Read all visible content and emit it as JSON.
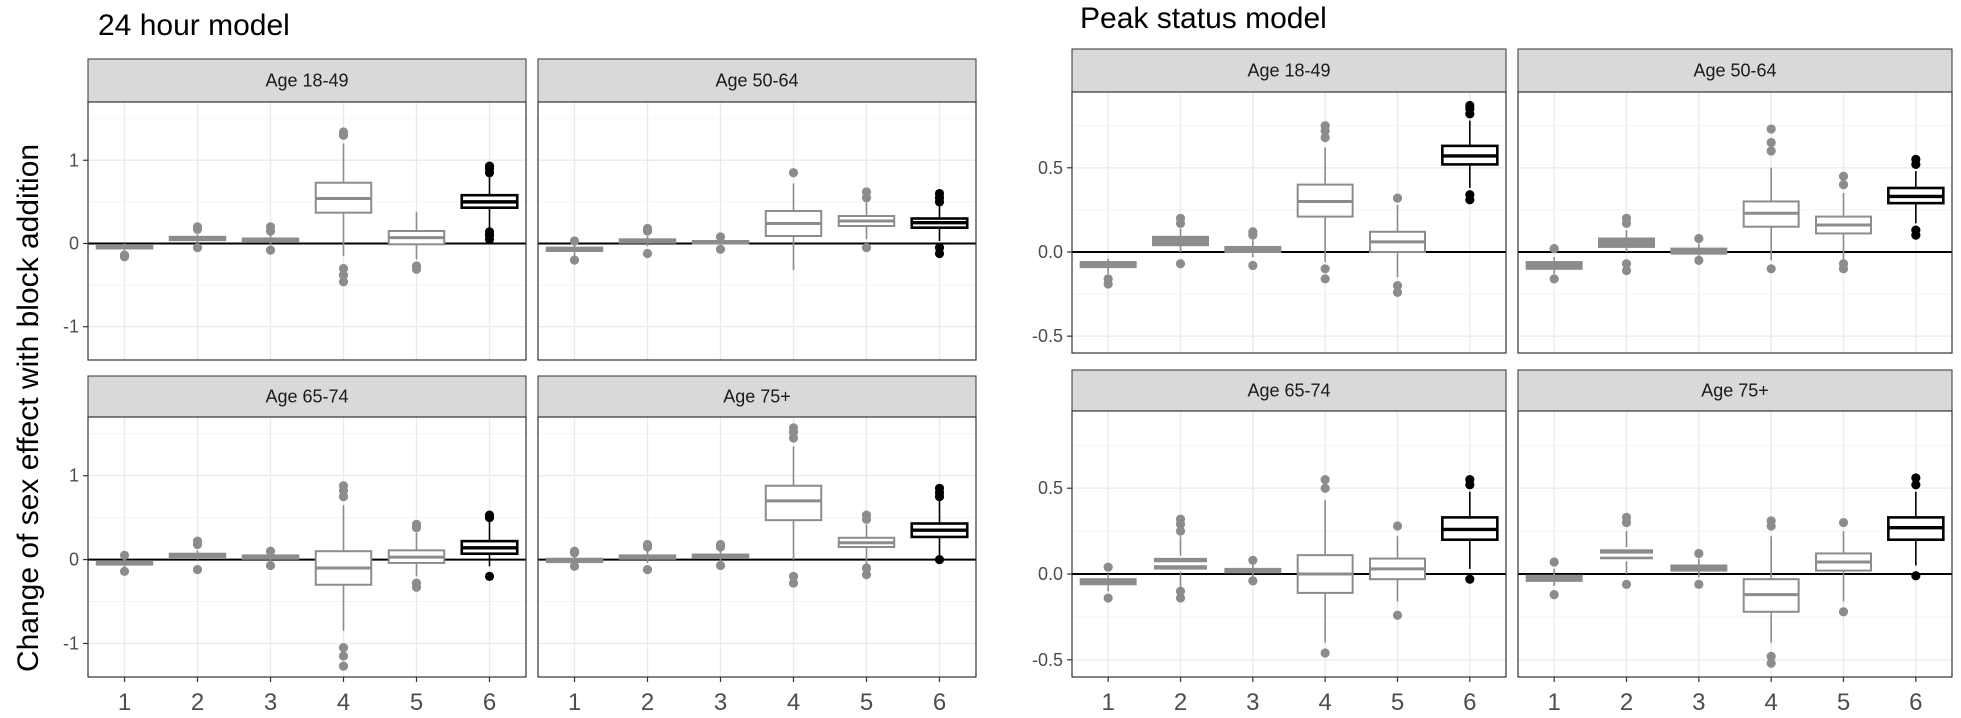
{
  "figure": {
    "ylabel": "Change of sex effect with block addition",
    "colors": {
      "grey": "#8c8c8c",
      "black": "#000000",
      "strip": "#d9d9d9",
      "grid": "#ebebeb",
      "frame": "#333333"
    }
  },
  "chart_data": [
    {
      "type": "box",
      "title": "24 hour model",
      "xlabel": "",
      "ylabel": "Change of sex effect with block addition",
      "categories": [
        "1",
        "2",
        "3",
        "4",
        "5",
        "6"
      ],
      "ylim": [
        -1.4,
        1.7
      ],
      "yticks": [
        -1,
        0,
        1
      ],
      "ytick_labels": [
        "-1",
        "0",
        "1"
      ],
      "grid": true,
      "hline": 0,
      "panels": [
        {
          "label": "Age 18-49",
          "boxes": [
            {
              "min": -0.12,
              "q1": -0.06,
              "median": -0.04,
              "q3": -0.02,
              "max": 0.0,
              "outliers": [
                -0.14,
                -0.16
              ],
              "fill": "#8c8c8c",
              "stroke": "#8c8c8c"
            },
            {
              "min": 0.01,
              "q1": 0.04,
              "median": 0.06,
              "q3": 0.08,
              "max": 0.11,
              "outliers": [
                -0.05,
                0.17,
                0.2
              ],
              "fill": "#8c8c8c",
              "stroke": "#8c8c8c"
            },
            {
              "min": -0.02,
              "q1": 0.02,
              "median": 0.04,
              "q3": 0.06,
              "max": 0.1,
              "outliers": [
                -0.08,
                0.15,
                0.2
              ],
              "fill": "#8c8c8c",
              "stroke": "#8c8c8c"
            },
            {
              "min": -0.15,
              "q1": 0.37,
              "median": 0.54,
              "q3": 0.73,
              "max": 1.2,
              "outliers": [
                -0.3,
                -0.38,
                -0.46,
                1.3,
                1.34
              ],
              "fill": "#ffffff",
              "stroke": "#8c8c8c"
            },
            {
              "min": -0.19,
              "q1": -0.01,
              "median": 0.07,
              "q3": 0.15,
              "max": 0.38,
              "outliers": [
                -0.27,
                -0.31
              ],
              "fill": "#ffffff",
              "stroke": "#8c8c8c"
            },
            {
              "min": 0.18,
              "q1": 0.43,
              "median": 0.5,
              "q3": 0.58,
              "max": 0.8,
              "outliers": [
                0.05,
                0.1,
                0.14,
                0.85,
                0.9,
                0.93
              ],
              "fill": "#ffffff",
              "stroke": "#000000"
            }
          ]
        },
        {
          "label": "Age 50-64",
          "boxes": [
            {
              "min": -0.15,
              "q1": -0.09,
              "median": -0.07,
              "q3": -0.05,
              "max": -0.01,
              "outliers": [
                -0.2,
                0.03
              ],
              "fill": "#8c8c8c",
              "stroke": "#8c8c8c"
            },
            {
              "min": -0.03,
              "q1": 0.01,
              "median": 0.03,
              "q3": 0.05,
              "max": 0.09,
              "outliers": [
                -0.12,
                0.15,
                0.18
              ],
              "fill": "#8c8c8c",
              "stroke": "#8c8c8c"
            },
            {
              "min": -0.03,
              "q1": 0.0,
              "median": 0.02,
              "q3": 0.03,
              "max": 0.06,
              "outliers": [
                -0.07,
                0.08
              ],
              "fill": "#8c8c8c",
              "stroke": "#8c8c8c"
            },
            {
              "min": -0.32,
              "q1": 0.09,
              "median": 0.24,
              "q3": 0.39,
              "max": 0.72,
              "outliers": [
                0.85
              ],
              "fill": "#ffffff",
              "stroke": "#8c8c8c"
            },
            {
              "min": 0.05,
              "q1": 0.21,
              "median": 0.27,
              "q3": 0.33,
              "max": 0.5,
              "outliers": [
                -0.05,
                0.55,
                0.62
              ],
              "fill": "#ffffff",
              "stroke": "#8c8c8c"
            },
            {
              "min": 0.03,
              "q1": 0.19,
              "median": 0.25,
              "q3": 0.3,
              "max": 0.45,
              "outliers": [
                -0.12,
                -0.05,
                0.5,
                0.55,
                0.6
              ],
              "fill": "#ffffff",
              "stroke": "#000000"
            }
          ]
        },
        {
          "label": "Age 65-74",
          "boxes": [
            {
              "min": -0.1,
              "q1": -0.06,
              "median": -0.04,
              "q3": -0.02,
              "max": 0.01,
              "outliers": [
                -0.14,
                0.05
              ],
              "fill": "#8c8c8c",
              "stroke": "#8c8c8c"
            },
            {
              "min": 0.0,
              "q1": 0.03,
              "median": 0.05,
              "q3": 0.07,
              "max": 0.11,
              "outliers": [
                -0.12,
                0.18,
                0.22
              ],
              "fill": "#8c8c8c",
              "stroke": "#8c8c8c"
            },
            {
              "min": -0.03,
              "q1": 0.01,
              "median": 0.03,
              "q3": 0.05,
              "max": 0.08,
              "outliers": [
                -0.07,
                0.1
              ],
              "fill": "#8c8c8c",
              "stroke": "#8c8c8c"
            },
            {
              "min": -0.85,
              "q1": -0.3,
              "median": -0.1,
              "q3": 0.1,
              "max": 0.65,
              "outliers": [
                -1.05,
                -1.15,
                -1.27,
                0.75,
                0.82,
                0.88
              ],
              "fill": "#ffffff",
              "stroke": "#8c8c8c"
            },
            {
              "min": -0.2,
              "q1": -0.04,
              "median": 0.03,
              "q3": 0.11,
              "max": 0.32,
              "outliers": [
                -0.28,
                -0.33,
                0.38,
                0.42
              ],
              "fill": "#ffffff",
              "stroke": "#8c8c8c"
            },
            {
              "min": -0.08,
              "q1": 0.07,
              "median": 0.14,
              "q3": 0.22,
              "max": 0.45,
              "outliers": [
                -0.2,
                0.5,
                0.53
              ],
              "fill": "#ffffff",
              "stroke": "#000000"
            }
          ]
        },
        {
          "label": "Age 75+",
          "boxes": [
            {
              "min": -0.05,
              "q1": -0.03,
              "median": -0.01,
              "q3": 0.01,
              "max": 0.04,
              "outliers": [
                -0.08,
                0.08,
                0.1
              ],
              "fill": "#8c8c8c",
              "stroke": "#8c8c8c"
            },
            {
              "min": -0.04,
              "q1": 0.01,
              "median": 0.03,
              "q3": 0.05,
              "max": 0.1,
              "outliers": [
                -0.12,
                0.15,
                0.18
              ],
              "fill": "#8c8c8c",
              "stroke": "#8c8c8c"
            },
            {
              "min": -0.03,
              "q1": 0.02,
              "median": 0.04,
              "q3": 0.06,
              "max": 0.12,
              "outliers": [
                -0.07,
                0.15,
                0.18
              ],
              "fill": "#8c8c8c",
              "stroke": "#8c8c8c"
            },
            {
              "min": 0.0,
              "q1": 0.47,
              "median": 0.7,
              "q3": 0.88,
              "max": 1.35,
              "outliers": [
                -0.2,
                -0.28,
                1.45,
                1.52,
                1.57
              ],
              "fill": "#ffffff",
              "stroke": "#8c8c8c"
            },
            {
              "min": -0.05,
              "q1": 0.15,
              "median": 0.2,
              "q3": 0.26,
              "max": 0.42,
              "outliers": [
                -0.18,
                -0.1,
                0.48,
                0.53
              ],
              "fill": "#ffffff",
              "stroke": "#8c8c8c"
            },
            {
              "min": 0.05,
              "q1": 0.27,
              "median": 0.35,
              "q3": 0.43,
              "max": 0.7,
              "outliers": [
                0.0,
                0.75,
                0.8,
                0.85
              ],
              "fill": "#ffffff",
              "stroke": "#000000"
            }
          ]
        }
      ]
    },
    {
      "type": "box",
      "title": "Peak status model",
      "xlabel": "",
      "ylabel": "",
      "categories": [
        "1",
        "2",
        "3",
        "4",
        "5",
        "6"
      ],
      "ylim": [
        -0.6,
        0.95
      ],
      "yticks": [
        -0.5,
        0.0,
        0.5
      ],
      "ytick_labels": [
        "-0.5",
        "0.0",
        "0.5"
      ],
      "grid": true,
      "hline": 0,
      "panels": [
        {
          "label": "Age 18-49",
          "boxes": [
            {
              "min": -0.13,
              "q1": -0.09,
              "median": -0.07,
              "q3": -0.06,
              "max": -0.04,
              "outliers": [
                -0.16,
                -0.19
              ],
              "fill": "#8c8c8c",
              "stroke": "#8c8c8c"
            },
            {
              "min": 0.0,
              "q1": 0.04,
              "median": 0.06,
              "q3": 0.09,
              "max": 0.14,
              "outliers": [
                -0.07,
                0.17,
                0.2
              ],
              "fill": "#8c8c8c",
              "stroke": "#8c8c8c"
            },
            {
              "min": -0.03,
              "q1": 0.0,
              "median": 0.02,
              "q3": 0.03,
              "max": 0.07,
              "outliers": [
                -0.08,
                0.1,
                0.12
              ],
              "fill": "#8c8c8c",
              "stroke": "#8c8c8c"
            },
            {
              "min": -0.06,
              "q1": 0.21,
              "median": 0.3,
              "q3": 0.4,
              "max": 0.62,
              "outliers": [
                -0.16,
                -0.1,
                0.68,
                0.72,
                0.75
              ],
              "fill": "#ffffff",
              "stroke": "#8c8c8c"
            },
            {
              "min": -0.15,
              "q1": 0.0,
              "median": 0.06,
              "q3": 0.12,
              "max": 0.28,
              "outliers": [
                -0.2,
                -0.24,
                0.32
              ],
              "fill": "#ffffff",
              "stroke": "#8c8c8c"
            },
            {
              "min": 0.38,
              "q1": 0.52,
              "median": 0.57,
              "q3": 0.63,
              "max": 0.78,
              "outliers": [
                0.31,
                0.34,
                0.82,
                0.85,
                0.87
              ],
              "fill": "#ffffff",
              "stroke": "#000000"
            }
          ]
        },
        {
          "label": "Age 50-64",
          "boxes": [
            {
              "min": -0.13,
              "q1": -0.1,
              "median": -0.08,
              "q3": -0.06,
              "max": -0.03,
              "outliers": [
                -0.16,
                0.02
              ],
              "fill": "#8c8c8c",
              "stroke": "#8c8c8c"
            },
            {
              "min": 0.0,
              "q1": 0.03,
              "median": 0.06,
              "q3": 0.08,
              "max": 0.13,
              "outliers": [
                -0.11,
                -0.07,
                0.17,
                0.2
              ],
              "fill": "#8c8c8c",
              "stroke": "#8c8c8c"
            },
            {
              "min": -0.03,
              "q1": -0.01,
              "median": 0.0,
              "q3": 0.02,
              "max": 0.05,
              "outliers": [
                -0.05,
                0.08
              ],
              "fill": "#8c8c8c",
              "stroke": "#8c8c8c"
            },
            {
              "min": -0.05,
              "q1": 0.15,
              "median": 0.23,
              "q3": 0.3,
              "max": 0.5,
              "outliers": [
                -0.1,
                0.6,
                0.65,
                0.73
              ],
              "fill": "#ffffff",
              "stroke": "#8c8c8c"
            },
            {
              "min": -0.05,
              "q1": 0.11,
              "median": 0.16,
              "q3": 0.21,
              "max": 0.35,
              "outliers": [
                -0.1,
                -0.07,
                0.4,
                0.45
              ],
              "fill": "#ffffff",
              "stroke": "#8c8c8c"
            },
            {
              "min": 0.17,
              "q1": 0.29,
              "median": 0.33,
              "q3": 0.38,
              "max": 0.48,
              "outliers": [
                0.1,
                0.13,
                0.52,
                0.55
              ],
              "fill": "#ffffff",
              "stroke": "#000000"
            }
          ]
        },
        {
          "label": "Age 65-74",
          "boxes": [
            {
              "min": -0.1,
              "q1": -0.06,
              "median": -0.05,
              "q3": -0.03,
              "max": 0.0,
              "outliers": [
                -0.14,
                0.04
              ],
              "fill": "#8c8c8c",
              "stroke": "#8c8c8c"
            },
            {
              "min": -0.08,
              "q1": 0.02,
              "median": 0.06,
              "q3": 0.1,
              "max": 0.22,
              "outliers": [
                -0.14,
                -0.1,
                0.25,
                0.29,
                0.32
              ],
              "fill": "#8c8c8c",
              "stroke": "#ffffff"
            },
            {
              "min": -0.02,
              "q1": 0.01,
              "median": 0.02,
              "q3": 0.03,
              "max": 0.06,
              "outliers": [
                -0.04,
                0.08
              ],
              "fill": "#8c8c8c",
              "stroke": "#8c8c8c"
            },
            {
              "min": -0.4,
              "q1": -0.11,
              "median": 0.0,
              "q3": 0.11,
              "max": 0.43,
              "outliers": [
                -0.46,
                0.5,
                0.55
              ],
              "fill": "#ffffff",
              "stroke": "#8c8c8c"
            },
            {
              "min": -0.16,
              "q1": -0.03,
              "median": 0.03,
              "q3": 0.09,
              "max": 0.22,
              "outliers": [
                -0.24,
                0.28
              ],
              "fill": "#ffffff",
              "stroke": "#8c8c8c"
            },
            {
              "min": 0.03,
              "q1": 0.2,
              "median": 0.26,
              "q3": 0.33,
              "max": 0.48,
              "outliers": [
                -0.03,
                0.52,
                0.55
              ],
              "fill": "#ffffff",
              "stroke": "#000000"
            }
          ]
        },
        {
          "label": "Age 75+",
          "boxes": [
            {
              "min": -0.07,
              "q1": -0.04,
              "median": -0.02,
              "q3": -0.01,
              "max": 0.03,
              "outliers": [
                -0.12,
                0.07
              ],
              "fill": "#8c8c8c",
              "stroke": "#8c8c8c"
            },
            {
              "min": 0.0,
              "q1": 0.08,
              "median": 0.11,
              "q3": 0.15,
              "max": 0.25,
              "outliers": [
                -0.06,
                0.3,
                0.33
              ],
              "fill": "#8c8c8c",
              "stroke": "#ffffff"
            },
            {
              "min": -0.02,
              "q1": 0.02,
              "median": 0.04,
              "q3": 0.05,
              "max": 0.09,
              "outliers": [
                -0.06,
                0.12
              ],
              "fill": "#8c8c8c",
              "stroke": "#8c8c8c"
            },
            {
              "min": -0.4,
              "q1": -0.22,
              "median": -0.12,
              "q3": -0.03,
              "max": 0.22,
              "outliers": [
                -0.48,
                -0.52,
                0.28,
                0.31
              ],
              "fill": "#ffffff",
              "stroke": "#8c8c8c"
            },
            {
              "min": -0.16,
              "q1": 0.02,
              "median": 0.07,
              "q3": 0.12,
              "max": 0.25,
              "outliers": [
                -0.22,
                0.3
              ],
              "fill": "#ffffff",
              "stroke": "#8c8c8c"
            },
            {
              "min": 0.05,
              "q1": 0.2,
              "median": 0.27,
              "q3": 0.33,
              "max": 0.48,
              "outliers": [
                -0.01,
                0.52,
                0.56
              ],
              "fill": "#ffffff",
              "stroke": "#000000"
            }
          ]
        }
      ]
    }
  ]
}
